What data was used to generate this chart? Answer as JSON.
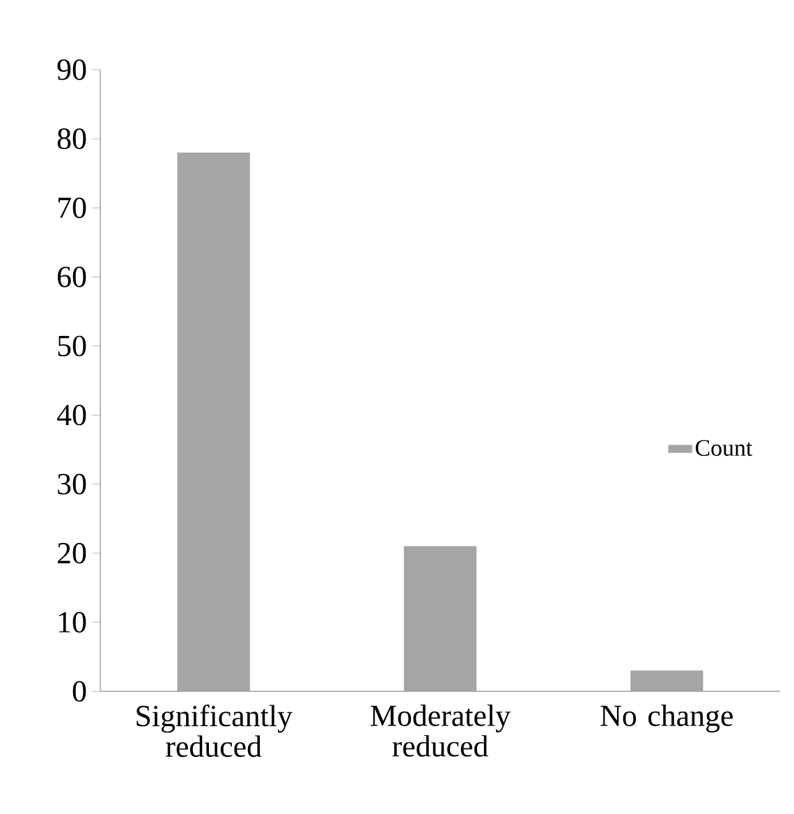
{
  "chart_data": {
    "type": "bar",
    "categories": [
      "Significantly reduced",
      "Moderately reduced",
      "No change"
    ],
    "series": [
      {
        "name": "Count",
        "color": "#a5a5a5",
        "values": [
          78,
          21,
          3
        ]
      }
    ],
    "ylim": [
      0,
      90
    ],
    "yticks": [
      0,
      10,
      20,
      30,
      40,
      50,
      60,
      70,
      80,
      90
    ],
    "legend": "right",
    "grid": false
  }
}
